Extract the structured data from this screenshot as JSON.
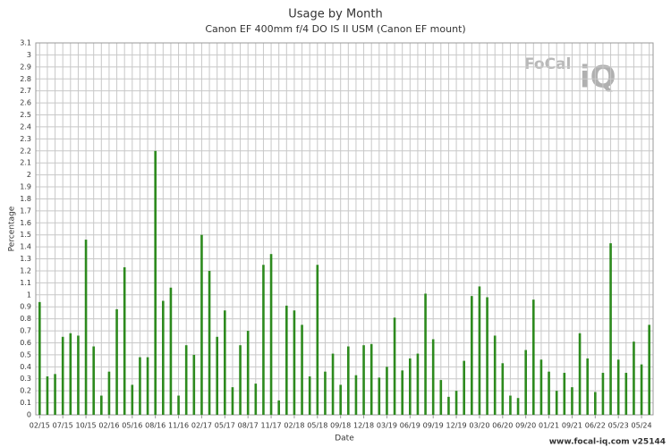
{
  "chart_data": {
    "type": "bar",
    "title": "Usage by Month",
    "subtitle": "Canon EF 400mm f/4 DO IS II USM (Canon EF mount)",
    "x_label": "Date",
    "y_label": "Percentage",
    "logo": [
      "FoCal",
      "iQ"
    ],
    "credit": "www.focal-iq.com  v25144",
    "color": "#2d8a1e",
    "grid": true,
    "ylim": [
      0,
      3.1
    ],
    "yticks": [
      0,
      0.1,
      0.2,
      0.3,
      0.4,
      0.5,
      0.6,
      0.7,
      0.8,
      0.9,
      1,
      1.1,
      1.2,
      1.3,
      1.4,
      1.5,
      1.6,
      1.7,
      1.8,
      1.9,
      2,
      2.1,
      2.2,
      2.3,
      2.4,
      2.5,
      2.6,
      2.7,
      2.8,
      2.9,
      3,
      3.1
    ],
    "categories": [
      "02/15",
      null,
      null,
      "07/15",
      null,
      null,
      "10/15",
      null,
      null,
      "02/16",
      null,
      null,
      "05/16",
      null,
      null,
      "08/16",
      null,
      null,
      "11/16",
      null,
      null,
      "02/17",
      null,
      null,
      "05/17",
      null,
      null,
      "08/17",
      null,
      null,
      "11/17",
      null,
      null,
      "02/18",
      null,
      null,
      "05/18",
      null,
      null,
      "09/18",
      null,
      null,
      "12/18",
      null,
      null,
      "03/19",
      null,
      null,
      "06/19",
      null,
      null,
      "09/19",
      null,
      null,
      "12/19",
      null,
      null,
      "03/20",
      null,
      null,
      "06/20",
      null,
      null,
      "09/20",
      null,
      null,
      "01/21",
      null,
      null,
      "09/21",
      null,
      null,
      "06/22",
      null,
      null,
      "05/23",
      null,
      null,
      "05/24",
      null
    ],
    "values": [
      0.94,
      0.32,
      0.34,
      0.65,
      0.68,
      0.66,
      1.46,
      0.57,
      0.16,
      0.36,
      0.88,
      1.23,
      0.25,
      0.48,
      0.48,
      2.2,
      0.95,
      1.06,
      0.16,
      0.58,
      0.5,
      1.5,
      1.2,
      0.65,
      0.87,
      0.23,
      0.58,
      0.7,
      0.26,
      1.25,
      1.34,
      0.12,
      0.91,
      0.87,
      0.75,
      0.32,
      1.25,
      0.36,
      0.51,
      0.25,
      0.57,
      0.33,
      0.58,
      0.59,
      0.31,
      0.4,
      0.81,
      0.37,
      0.47,
      0.51,
      1.01,
      0.63,
      0.29,
      0.15,
      0.2,
      0.45,
      0.99,
      1.07,
      0.98,
      0.66,
      0.43,
      0.16,
      0.14,
      0.54,
      0.96,
      0.46,
      0.36,
      0.2,
      0.35,
      0.23,
      0.68,
      0.47,
      0.19,
      0.35,
      1.43,
      0.46,
      0.35,
      0.61,
      0.42,
      0.75
    ]
  }
}
